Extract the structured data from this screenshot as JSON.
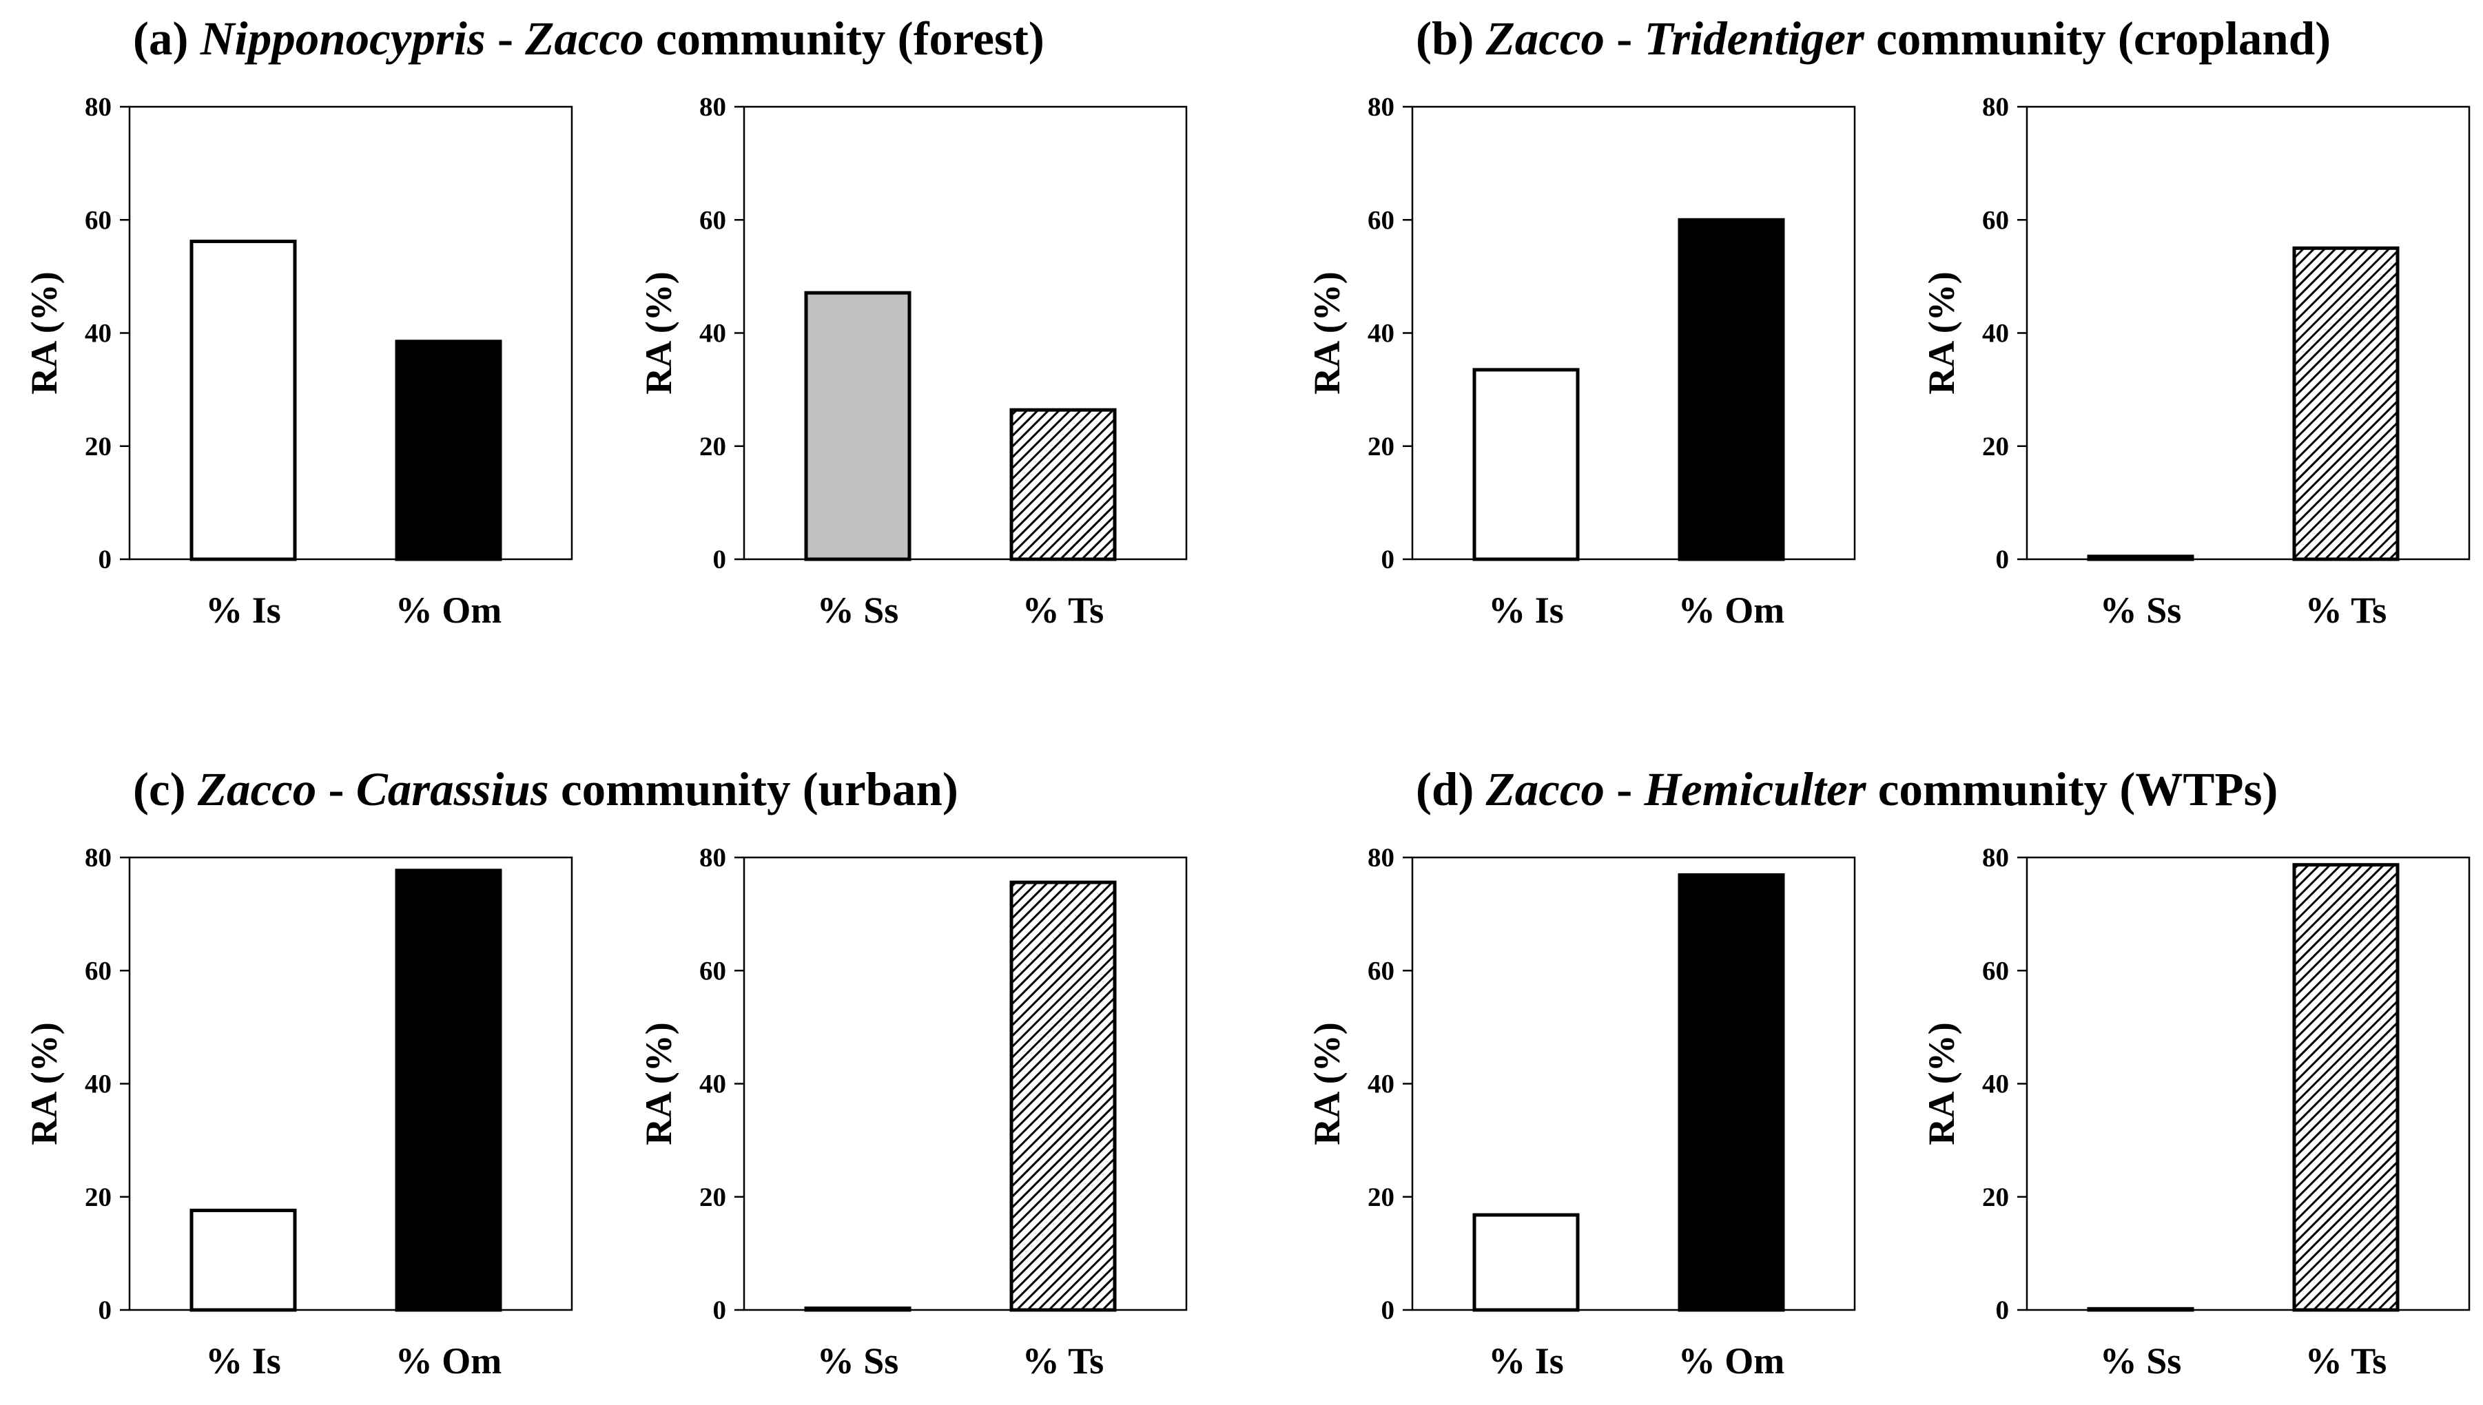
{
  "chart_data": [
    {
      "panel": "a",
      "title_parts": [
        {
          "text": "(a) ",
          "italic": false
        },
        {
          "text": "Nipponocypris",
          "italic": true
        },
        {
          "text": " - ",
          "italic": false
        },
        {
          "text": "Zacco",
          "italic": true
        },
        {
          "text": " community (forest)",
          "italic": false
        }
      ],
      "charts": [
        {
          "type": "bar",
          "categories": [
            "% Is",
            "% Om"
          ],
          "values": [
            56.2,
            38.5
          ],
          "fills": [
            "white",
            "black"
          ],
          "ylabel": "RA (%)",
          "ylim": [
            0,
            80
          ],
          "yticks": [
            0,
            20,
            40,
            60,
            80
          ]
        },
        {
          "type": "bar",
          "categories": [
            "% Ss",
            "% Ts"
          ],
          "values": [
            47.1,
            26.4
          ],
          "fills": [
            "gray",
            "hatch"
          ],
          "ylabel": "RA (%)",
          "ylim": [
            0,
            80
          ],
          "yticks": [
            0,
            20,
            40,
            60,
            80
          ]
        }
      ]
    },
    {
      "panel": "b",
      "title_parts": [
        {
          "text": "(b) ",
          "italic": false
        },
        {
          "text": "Zacco",
          "italic": true
        },
        {
          "text": " - ",
          "italic": false
        },
        {
          "text": "Tridentiger",
          "italic": true
        },
        {
          "text": " community (cropland)",
          "italic": false
        }
      ],
      "charts": [
        {
          "type": "bar",
          "categories": [
            "% Is",
            "% Om"
          ],
          "values": [
            33.5,
            60.0
          ],
          "fills": [
            "white",
            "black"
          ],
          "ylabel": "RA (%)",
          "ylim": [
            0,
            80
          ],
          "yticks": [
            0,
            20,
            40,
            60,
            80
          ]
        },
        {
          "type": "bar",
          "categories": [
            "% Ss",
            "% Ts"
          ],
          "values": [
            0.5,
            55.0
          ],
          "fills": [
            "white",
            "hatch"
          ],
          "ylabel": "RA (%)",
          "ylim": [
            0,
            80
          ],
          "yticks": [
            0,
            20,
            40,
            60,
            80
          ]
        }
      ]
    },
    {
      "panel": "c",
      "title_parts": [
        {
          "text": "(c) ",
          "italic": false
        },
        {
          "text": "Zacco",
          "italic": true
        },
        {
          "text": " - ",
          "italic": false
        },
        {
          "text": "Carassius",
          "italic": true
        },
        {
          "text": " community (urban)",
          "italic": false
        }
      ],
      "charts": [
        {
          "type": "bar",
          "categories": [
            "% Is",
            "% Om"
          ],
          "values": [
            17.6,
            77.7
          ],
          "fills": [
            "white",
            "black"
          ],
          "ylabel": "RA (%)",
          "ylim": [
            0,
            80
          ],
          "yticks": [
            0,
            20,
            40,
            60,
            80
          ]
        },
        {
          "type": "bar",
          "categories": [
            "% Ss",
            "% Ts"
          ],
          "values": [
            0.3,
            75.6
          ],
          "fills": [
            "white",
            "hatch"
          ],
          "ylabel": "RA (%)",
          "ylim": [
            0,
            80
          ],
          "yticks": [
            0,
            20,
            40,
            60,
            80
          ]
        }
      ]
    },
    {
      "panel": "d",
      "title_parts": [
        {
          "text": "(d) ",
          "italic": false
        },
        {
          "text": "Zacco",
          "italic": true
        },
        {
          "text": " - ",
          "italic": false
        },
        {
          "text": "Hemiculter",
          "italic": true
        },
        {
          "text": " community (WTPs)",
          "italic": false
        }
      ],
      "charts": [
        {
          "type": "bar",
          "categories": [
            "% Is",
            "% Om"
          ],
          "values": [
            16.8,
            76.9
          ],
          "fills": [
            "white",
            "black"
          ],
          "ylabel": "RA (%)",
          "ylim": [
            0,
            80
          ],
          "yticks": [
            0,
            20,
            40,
            60,
            80
          ]
        },
        {
          "type": "bar",
          "categories": [
            "% Ss",
            "% Ts"
          ],
          "values": [
            0.2,
            78.7
          ],
          "fills": [
            "white",
            "hatch"
          ],
          "ylabel": "RA (%)",
          "ylim": [
            0,
            80
          ],
          "yticks": [
            0,
            20,
            40,
            60,
            80
          ]
        }
      ]
    }
  ],
  "colors": {
    "white": "#ffffff",
    "black": "#000000",
    "gray": "#c0c0c0",
    "hatch_bg": "#ffffff",
    "hatch_line": "#000000",
    "axis": "#000000"
  }
}
